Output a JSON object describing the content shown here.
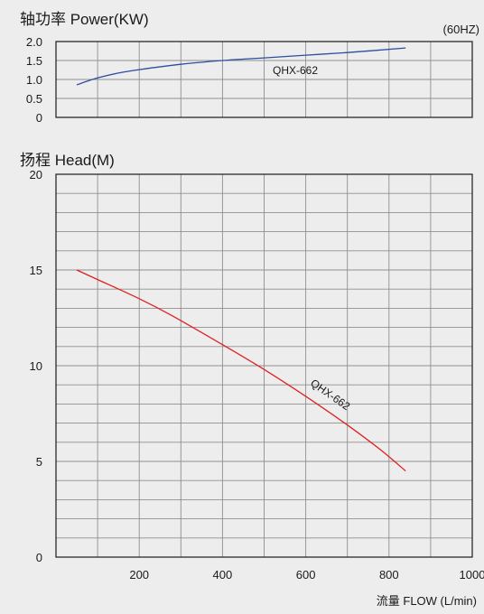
{
  "frequency_label": "(60HZ)",
  "flow_axis_label": "流量 FLOW (L/min)",
  "colors": {
    "background": "#ededed",
    "grid": "#8f8f8f",
    "frame": "#1a1a1a",
    "power_curve": "#2b4f9e",
    "head_curve": "#e02020"
  },
  "chart_data": [
    {
      "type": "line",
      "title": "轴功率 Power(KW)",
      "xlabel": "流量 FLOW (L/min)",
      "ylabel": "",
      "xlim": [
        0,
        1000
      ],
      "ylim": [
        0,
        2.0
      ],
      "y_ticks": [
        "2.0",
        "1.5",
        "1.0",
        "0.5",
        "0"
      ],
      "grid": true,
      "series": [
        {
          "name": "QHX-662",
          "x": [
            50,
            100,
            150,
            200,
            300,
            400,
            500,
            600,
            700,
            840
          ],
          "y": [
            0.86,
            1.04,
            1.17,
            1.26,
            1.4,
            1.5,
            1.57,
            1.64,
            1.71,
            1.83
          ]
        }
      ]
    },
    {
      "type": "line",
      "title": "扬程 Head(M)",
      "xlabel": "流量 FLOW (L/min)",
      "ylabel": "",
      "xlim": [
        0,
        1000
      ],
      "ylim": [
        0,
        20
      ],
      "x_ticks": [
        "200",
        "400",
        "600",
        "800",
        "1000"
      ],
      "y_ticks": [
        "20",
        "15",
        "10",
        "5",
        "0"
      ],
      "grid": true,
      "series": [
        {
          "name": "QHX-662",
          "x": [
            50,
            100,
            200,
            280,
            400,
            500,
            600,
            700,
            780,
            840
          ],
          "y": [
            15.0,
            14.5,
            13.5,
            12.6,
            11.1,
            9.8,
            8.4,
            6.9,
            5.6,
            4.5
          ]
        }
      ]
    }
  ]
}
